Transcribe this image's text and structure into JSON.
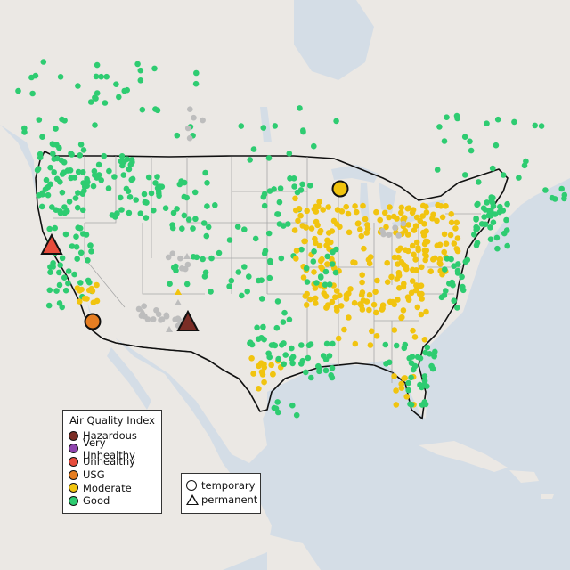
{
  "colors": {
    "water": "#d4dde6",
    "land": "#ebe8e4",
    "good": "#2ecc71",
    "moderate": "#f1c40f",
    "usg": "#e67e22",
    "unhealthy": "#e74c3c",
    "very_unhealthy": "#8e44ad",
    "hazardous": "#7b2d26",
    "no_data": "#bdbdbd"
  },
  "aqi_legend": {
    "title": "Air Quality Index",
    "items": [
      {
        "label": "Hazardous",
        "color": "#7b2d26"
      },
      {
        "label": "Very Unhealthy",
        "color": "#8e44ad"
      },
      {
        "label": "Unhealthy",
        "color": "#e74c3c"
      },
      {
        "label": "USG",
        "color": "#e67e22"
      },
      {
        "label": "Moderate",
        "color": "#f1c40f"
      },
      {
        "label": "Good",
        "color": "#2ecc71"
      }
    ]
  },
  "type_legend": {
    "temporary": "temporary",
    "permanent": "permanent"
  },
  "highlight_markers": [
    {
      "name": "highlight-unhealthy-triangle",
      "category": "unhealthy",
      "shape": "triangle"
    },
    {
      "name": "highlight-hazardous-triangle",
      "category": "hazardous",
      "shape": "triangle"
    },
    {
      "name": "highlight-usg-circle",
      "category": "usg",
      "shape": "circle"
    },
    {
      "name": "highlight-moderate-circle",
      "category": "moderate",
      "shape": "circle"
    }
  ]
}
